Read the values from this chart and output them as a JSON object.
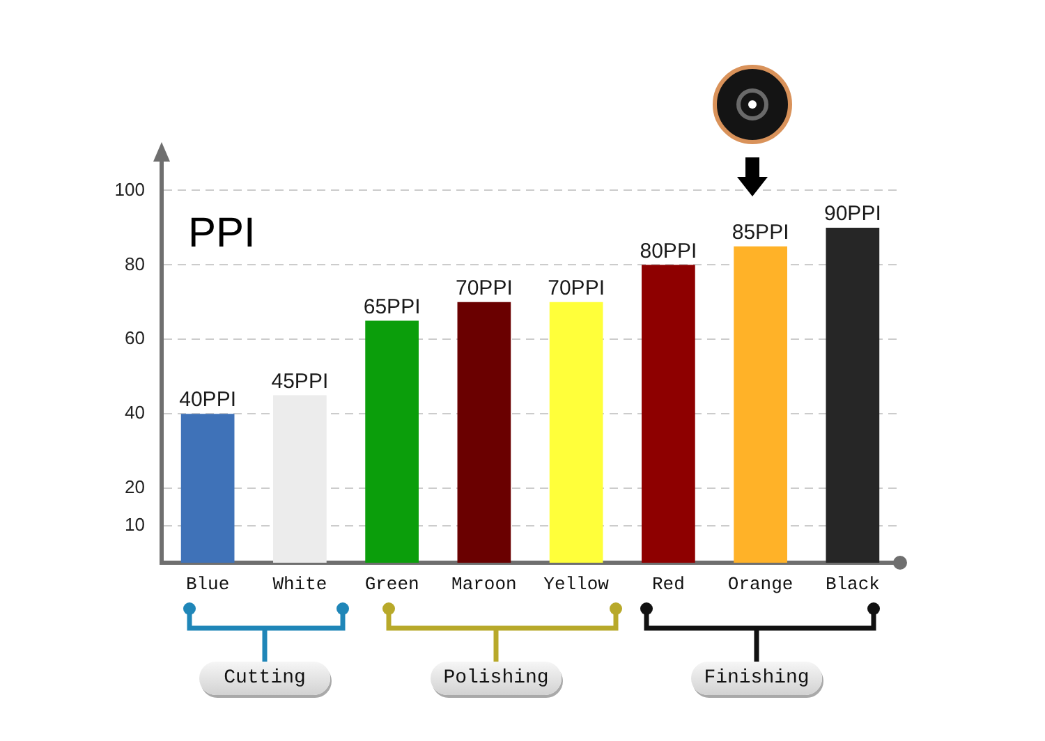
{
  "chart_data": {
    "type": "bar",
    "ylabel": "PPI",
    "categories": [
      "Blue",
      "White",
      "Green",
      "Maroon",
      "Yellow",
      "Red",
      "Orange",
      "Black"
    ],
    "values": [
      40,
      45,
      65,
      70,
      70,
      80,
      85,
      90
    ],
    "colors": [
      "#3f72b8",
      "#ececec",
      "#0b9e0b",
      "#6a0000",
      "#ffff3a",
      "#8e0000",
      "#ffb228",
      "#262626"
    ],
    "value_labels": [
      "40PPI",
      "45PPI",
      "65PPI",
      "70PPI",
      "70PPI",
      "80PPI",
      "85PPI",
      "90PPI"
    ],
    "ylim": [
      0,
      110
    ],
    "yticks": [
      10,
      20,
      40,
      60,
      80,
      100
    ],
    "grid": "y",
    "annotations": [
      "Cutting",
      "Polishing",
      "Finishing"
    ]
  }
}
